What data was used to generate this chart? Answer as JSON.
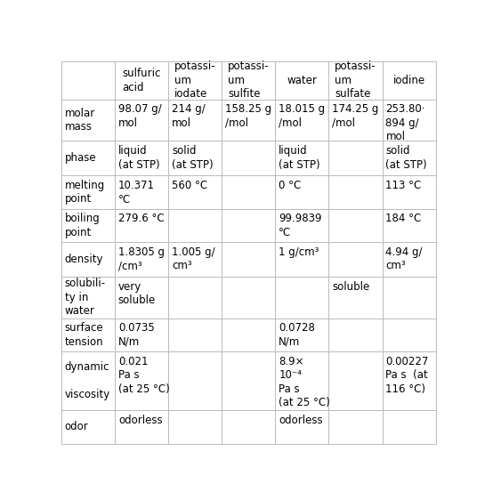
{
  "columns": [
    "",
    "sulfuric\nacid",
    "potassi-\num\niodate",
    "potassi-\num\nsulfite",
    "water",
    "potassi-\num\nsulfate",
    "iodine"
  ],
  "rows": [
    {
      "label": "molar\nmass",
      "values": [
        "98.07 g/\nmol",
        "214 g/\nmol",
        "158.25 g\n/mol",
        "18.015 g\n/mol",
        "174.25 g\n/mol",
        "253.80·\n894 g/\nmol"
      ]
    },
    {
      "label": "phase",
      "values": [
        "liquid\n(at STP)",
        "solid\n(at STP)",
        "",
        "liquid\n(at STP)",
        "",
        "solid\n(at STP)"
      ]
    },
    {
      "label": "melting\npoint",
      "values": [
        "10.371\n°C",
        "560 °C",
        "",
        "0 °C",
        "",
        "113 °C"
      ]
    },
    {
      "label": "boiling\npoint",
      "values": [
        "279.6 °C",
        "",
        "",
        "99.9839\n°C",
        "",
        "184 °C"
      ]
    },
    {
      "label": "density",
      "values": [
        "1.8305 g\n/cm³",
        "1.005 g/\ncm³",
        "",
        "1 g/cm³",
        "",
        "4.94 g/\ncm³"
      ]
    },
    {
      "label": "solubili-\nty in\nwater",
      "values": [
        "very\nsoluble",
        "",
        "",
        "",
        "soluble",
        ""
      ]
    },
    {
      "label": "surface\ntension",
      "values": [
        "0.0735\nN/m",
        "",
        "",
        "0.0728\nN/m",
        "",
        ""
      ]
    },
    {
      "label": "dynamic\n\nviscosity",
      "values": [
        "0.021\nPa s\n(at 25 °C)",
        "",
        "",
        "8.9×\n10⁻⁴\nPa s\n(at 25 °C)",
        "",
        "0.00227\nPa s  (at\n116 °C)"
      ]
    },
    {
      "label": "odor",
      "values": [
        "odorless",
        "",
        "",
        "odorless",
        "",
        ""
      ]
    }
  ],
  "border_color": "#bbbbbb",
  "text_color": "#000000",
  "small_text_color": "#666666",
  "fontsize": 8.5,
  "small_fontsize": 7.0
}
